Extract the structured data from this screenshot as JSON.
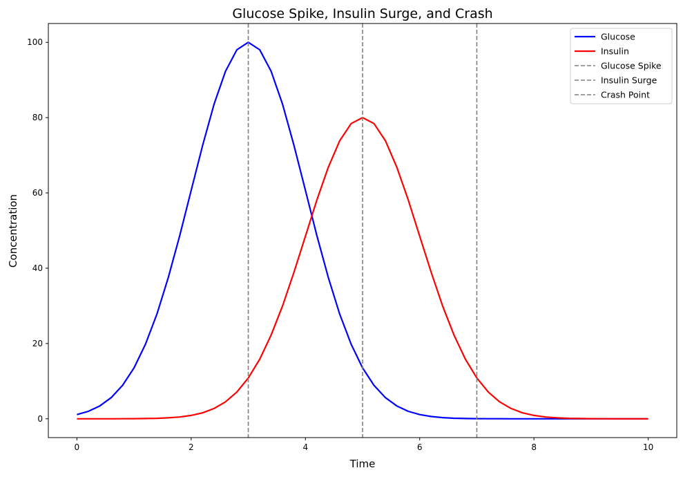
{
  "chart_data": {
    "type": "line",
    "title": "Glucose Spike, Insulin Surge, and Crash",
    "xlabel": "Time",
    "ylabel": "Concentration",
    "xlim": [
      -0.5,
      10.5
    ],
    "ylim": [
      -5,
      105
    ],
    "xticks": [
      0,
      2,
      4,
      6,
      8,
      10
    ],
    "yticks": [
      0,
      20,
      40,
      60,
      80,
      100
    ],
    "grid": false,
    "legend_position": "top-right",
    "x": [
      0,
      0.2,
      0.4,
      0.6,
      0.8,
      1.0,
      1.2,
      1.4,
      1.6,
      1.8,
      2.0,
      2.2,
      2.4,
      2.6,
      2.8,
      3.0,
      3.2,
      3.4,
      3.6,
      3.8,
      4.0,
      4.2,
      4.4,
      4.6,
      4.8,
      5.0,
      5.2,
      5.4,
      5.6,
      5.8,
      6.0,
      6.2,
      6.4,
      6.6,
      6.8,
      7.0,
      7.2,
      7.4,
      7.6,
      7.8,
      8.0,
      8.2,
      8.4,
      8.6,
      8.8,
      9.0,
      9.2,
      9.4,
      9.6,
      9.8,
      10.0
    ],
    "series": [
      {
        "name": "Glucose",
        "color": "#0000ff",
        "values": [
          1.11,
          1.98,
          3.41,
          5.61,
          8.89,
          13.53,
          19.79,
          27.8,
          37.53,
          48.68,
          60.65,
          72.61,
          83.53,
          92.31,
          98.02,
          100,
          98.02,
          92.31,
          83.53,
          72.61,
          60.65,
          48.68,
          37.53,
          27.8,
          19.79,
          13.53,
          8.89,
          5.61,
          3.41,
          1.98,
          1.11,
          0.6,
          0.31,
          0.15,
          0.07,
          0.03,
          0.01,
          0.01,
          0,
          0,
          0,
          0,
          0,
          0,
          0,
          0,
          0,
          0,
          0,
          0,
          0
        ]
      },
      {
        "name": "Insulin",
        "color": "#ff0000",
        "values": [
          0,
          0,
          0,
          0,
          0.01,
          0.03,
          0.06,
          0.12,
          0.25,
          0.48,
          0.89,
          1.58,
          2.73,
          4.49,
          7.11,
          10.83,
          15.83,
          22.24,
          30.02,
          38.94,
          48.52,
          58.09,
          66.82,
          73.85,
          78.42,
          80,
          78.42,
          73.85,
          66.82,
          58.09,
          48.52,
          38.94,
          30.02,
          22.24,
          15.83,
          10.83,
          7.11,
          4.49,
          2.73,
          1.58,
          0.89,
          0.48,
          0.25,
          0.12,
          0.06,
          0.03,
          0.01,
          0,
          0,
          0,
          0
        ]
      }
    ],
    "vlines": [
      {
        "name": "Glucose Spike",
        "x": 3,
        "color": "#808080",
        "style": "dashed"
      },
      {
        "name": "Insulin Surge",
        "x": 5,
        "color": "#808080",
        "style": "dashed"
      },
      {
        "name": "Crash Point",
        "x": 7,
        "color": "#808080",
        "style": "dashed"
      }
    ]
  }
}
